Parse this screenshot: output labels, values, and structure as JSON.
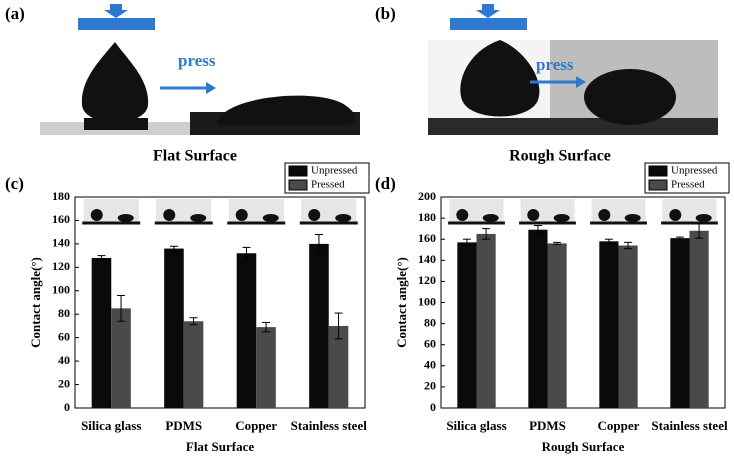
{
  "figure": {
    "panel_labels": [
      "(a)",
      "(b)",
      "(c)",
      "(d)"
    ],
    "press_labels": [
      "press",
      "press"
    ],
    "captions": [
      "Flat Surface",
      "Rough Surface"
    ]
  },
  "chart_data": [
    {
      "type": "bar",
      "ylabel": "Contact angle(°)",
      "xlabel": "Flat Surface",
      "categories": [
        "Silica glass",
        "PDMS",
        "Copper",
        "Stainless steel"
      ],
      "series": [
        {
          "name": "Unpressed",
          "color": "#0a0a0a",
          "values": [
            128,
            136,
            132,
            140
          ],
          "errors": [
            2,
            2,
            5,
            8
          ]
        },
        {
          "name": "Pressed",
          "color": "#4a4a4a",
          "values": [
            85,
            74,
            69,
            70
          ],
          "errors": [
            11,
            3,
            4,
            11
          ]
        }
      ],
      "ylim": [
        0,
        180
      ],
      "yticks": [
        0,
        20,
        40,
        60,
        80,
        100,
        120,
        140,
        160,
        180
      ],
      "legend": "top-right"
    },
    {
      "type": "bar",
      "ylabel": "Contact angle(°)",
      "xlabel": "Rough Surface",
      "categories": [
        "Silica glass",
        "PDMS",
        "Copper",
        "Stainless steel"
      ],
      "series": [
        {
          "name": "Unpressed",
          "color": "#0a0a0a",
          "values": [
            157,
            169,
            158,
            161
          ],
          "errors": [
            3,
            4,
            2,
            1
          ]
        },
        {
          "name": "Pressed",
          "color": "#4a4a4a",
          "values": [
            165,
            156,
            154,
            168
          ],
          "errors": [
            5,
            1,
            3,
            7
          ]
        }
      ],
      "ylim": [
        0,
        200
      ],
      "yticks": [
        0,
        20,
        40,
        60,
        80,
        100,
        120,
        140,
        160,
        180,
        200
      ],
      "legend": "top-right"
    }
  ]
}
